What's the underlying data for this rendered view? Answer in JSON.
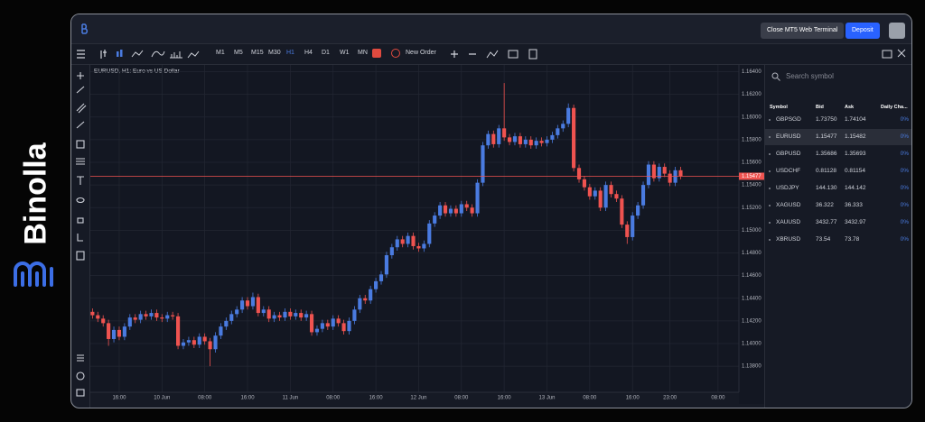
{
  "brand": "Binolla",
  "header": {
    "buttons": [
      "Close MT5 Web Terminal",
      "Deposit"
    ]
  },
  "toolbar": {
    "timeframes": [
      "M1",
      "M5",
      "M15",
      "M30",
      "H1",
      "H4",
      "D1",
      "W1",
      "MN"
    ],
    "active_timeframe": 4,
    "new_order": "New Order"
  },
  "chart_data": {
    "type": "candlestick",
    "title": "EURUSD, H1: Euro vs US Dollar",
    "up_color": "#4a7be0",
    "down_color": "#ef5350",
    "grid": true,
    "open": [
      1.1428,
      1.1425,
      1.1422,
      1.1418,
      1.1404,
      1.1412,
      1.1406,
      1.1415,
      1.1423,
      1.1421,
      1.1426,
      1.1424,
      1.1427,
      1.1423,
      1.1422,
      1.1425,
      1.1424,
      1.1398,
      1.1401,
      1.1403,
      1.1399,
      1.1406,
      1.1402,
      1.1395,
      1.1407,
      1.1415,
      1.142,
      1.1426,
      1.143,
      1.1438,
      1.1433,
      1.1441,
      1.1427,
      1.143,
      1.1422,
      1.1425,
      1.1423,
      1.1428,
      1.1424,
      1.1427,
      1.1423,
      1.1426,
      1.141,
      1.1413,
      1.1418,
      1.1415,
      1.1422,
      1.1418,
      1.1411,
      1.142,
      1.143,
      1.144,
      1.1438,
      1.1448,
      1.1455,
      1.1461,
      1.1478,
      1.1485,
      1.1492,
      1.1488,
      1.1495,
      1.1486,
      1.1484,
      1.1488,
      1.1506,
      1.1513,
      1.1522,
      1.1515,
      1.1519,
      1.1515,
      1.1523,
      1.152,
      1.1515,
      1.1542,
      1.1575,
      1.1585,
      1.1576,
      1.159,
      1.1582,
      1.1578,
      1.1583,
      1.1576,
      1.158,
      1.1575,
      1.1579,
      1.1577,
      1.158,
      1.1584,
      1.159,
      1.1594,
      1.1608,
      1.1555,
      1.1545,
      1.1538,
      1.153,
      1.1535,
      1.152,
      1.154,
      1.1532,
      1.1528,
      1.1505,
      1.1494,
      1.1513,
      1.1522,
      1.154,
      1.1558,
      1.1546,
      1.1556,
      1.155,
      1.1542,
      1.1553
    ],
    "high": [
      1.1431,
      1.1428,
      1.1425,
      1.1421,
      1.1415,
      1.1415,
      1.1418,
      1.1426,
      1.1426,
      1.1429,
      1.1429,
      1.143,
      1.143,
      1.1426,
      1.1428,
      1.1428,
      1.1427,
      1.1404,
      1.1406,
      1.1406,
      1.1409,
      1.1409,
      1.1405,
      1.141,
      1.1418,
      1.1423,
      1.1429,
      1.1433,
      1.1441,
      1.1441,
      1.1445,
      1.1444,
      1.1433,
      1.1433,
      1.1428,
      1.1428,
      1.1431,
      1.1431,
      1.143,
      1.143,
      1.1429,
      1.1429,
      1.1416,
      1.1421,
      1.1421,
      1.1425,
      1.1425,
      1.1421,
      1.1423,
      1.1433,
      1.1443,
      1.1443,
      1.1451,
      1.1458,
      1.1464,
      1.1481,
      1.1488,
      1.1495,
      1.1495,
      1.1498,
      1.1498,
      1.1489,
      1.1491,
      1.1509,
      1.1516,
      1.1525,
      1.1525,
      1.1522,
      1.1522,
      1.1526,
      1.1526,
      1.1523,
      1.1545,
      1.1578,
      1.1588,
      1.1588,
      1.1593,
      1.163,
      1.1585,
      1.1586,
      1.1586,
      1.1583,
      1.1583,
      1.1582,
      1.1582,
      1.1583,
      1.1587,
      1.1593,
      1.1597,
      1.1612,
      1.1611,
      1.1558,
      1.1548,
      1.1541,
      1.1538,
      1.1538,
      1.1543,
      1.1543,
      1.1535,
      1.1531,
      1.1508,
      1.1516,
      1.1525,
      1.1543,
      1.1561,
      1.1561,
      1.1559,
      1.1559,
      1.1553,
      1.1556,
      1.1556
    ],
    "low": [
      1.1422,
      1.1419,
      1.1415,
      1.1398,
      1.1401,
      1.1403,
      1.1403,
      1.1412,
      1.1418,
      1.1418,
      1.1421,
      1.1421,
      1.142,
      1.1419,
      1.1419,
      1.1421,
      1.1395,
      1.1395,
      1.1398,
      1.1396,
      1.1396,
      1.1399,
      1.138,
      1.1392,
      1.1404,
      1.1412,
      1.1417,
      1.1423,
      1.1427,
      1.143,
      1.143,
      1.1424,
      1.1424,
      1.1419,
      1.1419,
      1.142,
      1.142,
      1.1421,
      1.1421,
      1.142,
      1.142,
      1.1407,
      1.1407,
      1.141,
      1.1412,
      1.1412,
      1.1415,
      1.1408,
      1.1408,
      1.1417,
      1.1427,
      1.1435,
      1.1435,
      1.1445,
      1.1452,
      1.1458,
      1.1475,
      1.1482,
      1.1485,
      1.1485,
      1.1483,
      1.1481,
      1.1481,
      1.1485,
      1.1503,
      1.151,
      1.1512,
      1.1512,
      1.1512,
      1.1512,
      1.1517,
      1.1512,
      1.1512,
      1.1539,
      1.1572,
      1.1573,
      1.1573,
      1.1579,
      1.1575,
      1.1575,
      1.1573,
      1.1573,
      1.1572,
      1.1572,
      1.1574,
      1.1574,
      1.1577,
      1.1581,
      1.1587,
      1.1591,
      1.1552,
      1.1542,
      1.1535,
      1.1527,
      1.1527,
      1.1517,
      1.1517,
      1.1529,
      1.1525,
      1.1502,
      1.1488,
      1.1491,
      1.151,
      1.1519,
      1.1537,
      1.1543,
      1.1543,
      1.1547,
      1.1539,
      1.1539,
      1.1545
    ],
    "close": [
      1.1425,
      1.1422,
      1.1418,
      1.1404,
      1.1412,
      1.1406,
      1.1415,
      1.1423,
      1.1421,
      1.1426,
      1.1424,
      1.1427,
      1.1423,
      1.1422,
      1.1425,
      1.1424,
      1.1398,
      1.1401,
      1.1403,
      1.1399,
      1.1406,
      1.1402,
      1.1395,
      1.1407,
      1.1415,
      1.142,
      1.1426,
      1.143,
      1.1438,
      1.1433,
      1.1441,
      1.1427,
      1.143,
      1.1422,
      1.1425,
      1.1423,
      1.1428,
      1.1424,
      1.1427,
      1.1423,
      1.1426,
      1.141,
      1.1413,
      1.1418,
      1.1415,
      1.1422,
      1.1418,
      1.1411,
      1.142,
      1.143,
      1.144,
      1.1438,
      1.1448,
      1.1455,
      1.1461,
      1.1478,
      1.1485,
      1.1492,
      1.1488,
      1.1495,
      1.1486,
      1.1484,
      1.1488,
      1.1506,
      1.1513,
      1.1522,
      1.1515,
      1.1519,
      1.1515,
      1.1523,
      1.152,
      1.1515,
      1.1542,
      1.1575,
      1.1585,
      1.1576,
      1.159,
      1.1582,
      1.1578,
      1.1583,
      1.1576,
      1.158,
      1.1575,
      1.1579,
      1.1577,
      1.158,
      1.1584,
      1.159,
      1.1594,
      1.1608,
      1.1555,
      1.1545,
      1.1538,
      1.153,
      1.1535,
      1.152,
      1.154,
      1.1532,
      1.1528,
      1.1505,
      1.1494,
      1.1513,
      1.1522,
      1.154,
      1.1558,
      1.1546,
      1.1556,
      1.155,
      1.1542,
      1.1553,
      1.15477
    ],
    "current_price": 1.15477,
    "xlim": [
      -0.4,
      120.9
    ],
    "xticks": [
      {
        "value": 5,
        "label": "16:00"
      },
      {
        "value": 13,
        "label": "10 Jun"
      },
      {
        "value": 21,
        "label": "08:00"
      },
      {
        "value": 29,
        "label": "16:00"
      },
      {
        "value": 37,
        "label": "11 Jun"
      },
      {
        "value": 45,
        "label": "08:00"
      },
      {
        "value": 53,
        "label": "16:00"
      },
      {
        "value": 61,
        "label": "12 Jun"
      },
      {
        "value": 69,
        "label": "08:00"
      },
      {
        "value": 77,
        "label": "16:00"
      },
      {
        "value": 85,
        "label": "13 Jun"
      },
      {
        "value": 93,
        "label": "08:00"
      },
      {
        "value": 101,
        "label": "16:00"
      },
      {
        "value": 108,
        "label": "23:00"
      },
      {
        "value": 117,
        "label": "08:00"
      }
    ],
    "ylim": [
      1.1357,
      1.1646
    ],
    "yticks": [
      {
        "value": 1.164,
        "label": "1.16400"
      },
      {
        "value": 1.162,
        "label": "1.16200"
      },
      {
        "value": 1.16,
        "label": "1.16000"
      },
      {
        "value": 1.158,
        "label": "1.15800"
      },
      {
        "value": 1.156,
        "label": "1.15600"
      },
      {
        "value": 1.154,
        "label": "1.15400"
      },
      {
        "value": 1.152,
        "label": "1.15200"
      },
      {
        "value": 1.15,
        "label": "1.15000"
      },
      {
        "value": 1.148,
        "label": "1.14800"
      },
      {
        "value": 1.146,
        "label": "1.14600"
      },
      {
        "value": 1.144,
        "label": "1.14400"
      },
      {
        "value": 1.142,
        "label": "1.14200"
      },
      {
        "value": 1.14,
        "label": "1.14000"
      },
      {
        "value": 1.138,
        "label": "1.13800"
      }
    ]
  },
  "watchlist": {
    "search": "Search symbol",
    "columns": [
      "Symbol",
      "Bid",
      "Ask",
      "Daily Cha..."
    ],
    "selected": 1,
    "rows": [
      [
        "GBPSGD",
        "1.73750",
        "1.74104",
        "0%"
      ],
      [
        "EURUSD",
        "1.15477",
        "1.15482",
        "0%"
      ],
      [
        "GBPUSD",
        "1.35686",
        "1.35693",
        "0%"
      ],
      [
        "USDCHF",
        "0.81128",
        "0.81154",
        "0%"
      ],
      [
        "USDJPY",
        "144.130",
        "144.142",
        "0%"
      ],
      [
        "XAGUSD",
        "36.322",
        "36.333",
        "0%"
      ],
      [
        "XAUUSD",
        "3432.77",
        "3432.97",
        "0%"
      ],
      [
        "XBRUSD",
        "73.54",
        "73.78",
        "0%"
      ]
    ]
  }
}
